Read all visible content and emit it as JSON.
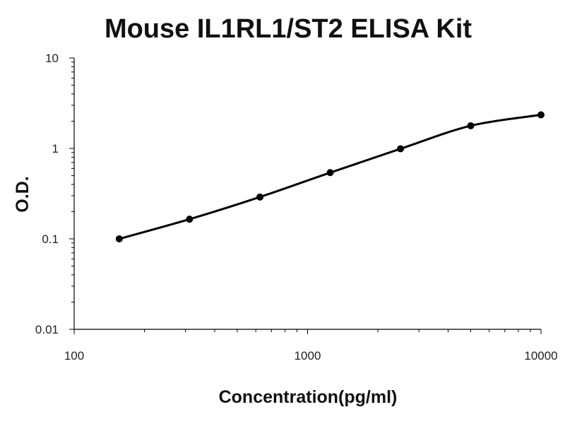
{
  "chart_data": {
    "type": "line",
    "title": "Mouse IL1RL1/ST2 ELISA Kit",
    "xlabel": "Concentration(pg/ml)",
    "ylabel": "O.D.",
    "x_scale": "log",
    "y_scale": "log",
    "xlim": [
      100,
      10000
    ],
    "ylim": [
      0.01,
      10
    ],
    "x_ticks": [
      100,
      1000,
      10000
    ],
    "x_tick_labels": [
      "100",
      "1000",
      "10000"
    ],
    "y_ticks": [
      0.01,
      0.1,
      1,
      10
    ],
    "y_tick_labels": [
      "0.01",
      "0.1",
      "1",
      "10"
    ],
    "grid": false,
    "legend": "none",
    "series": [
      {
        "x": [
          156,
          312,
          625,
          1250,
          2500,
          5000,
          10000
        ],
        "y": [
          0.1,
          0.165,
          0.29,
          0.54,
          0.99,
          1.78,
          2.35
        ]
      }
    ],
    "colors": {
      "line": "#000000",
      "marker": "#000000",
      "text": "#111111"
    }
  }
}
